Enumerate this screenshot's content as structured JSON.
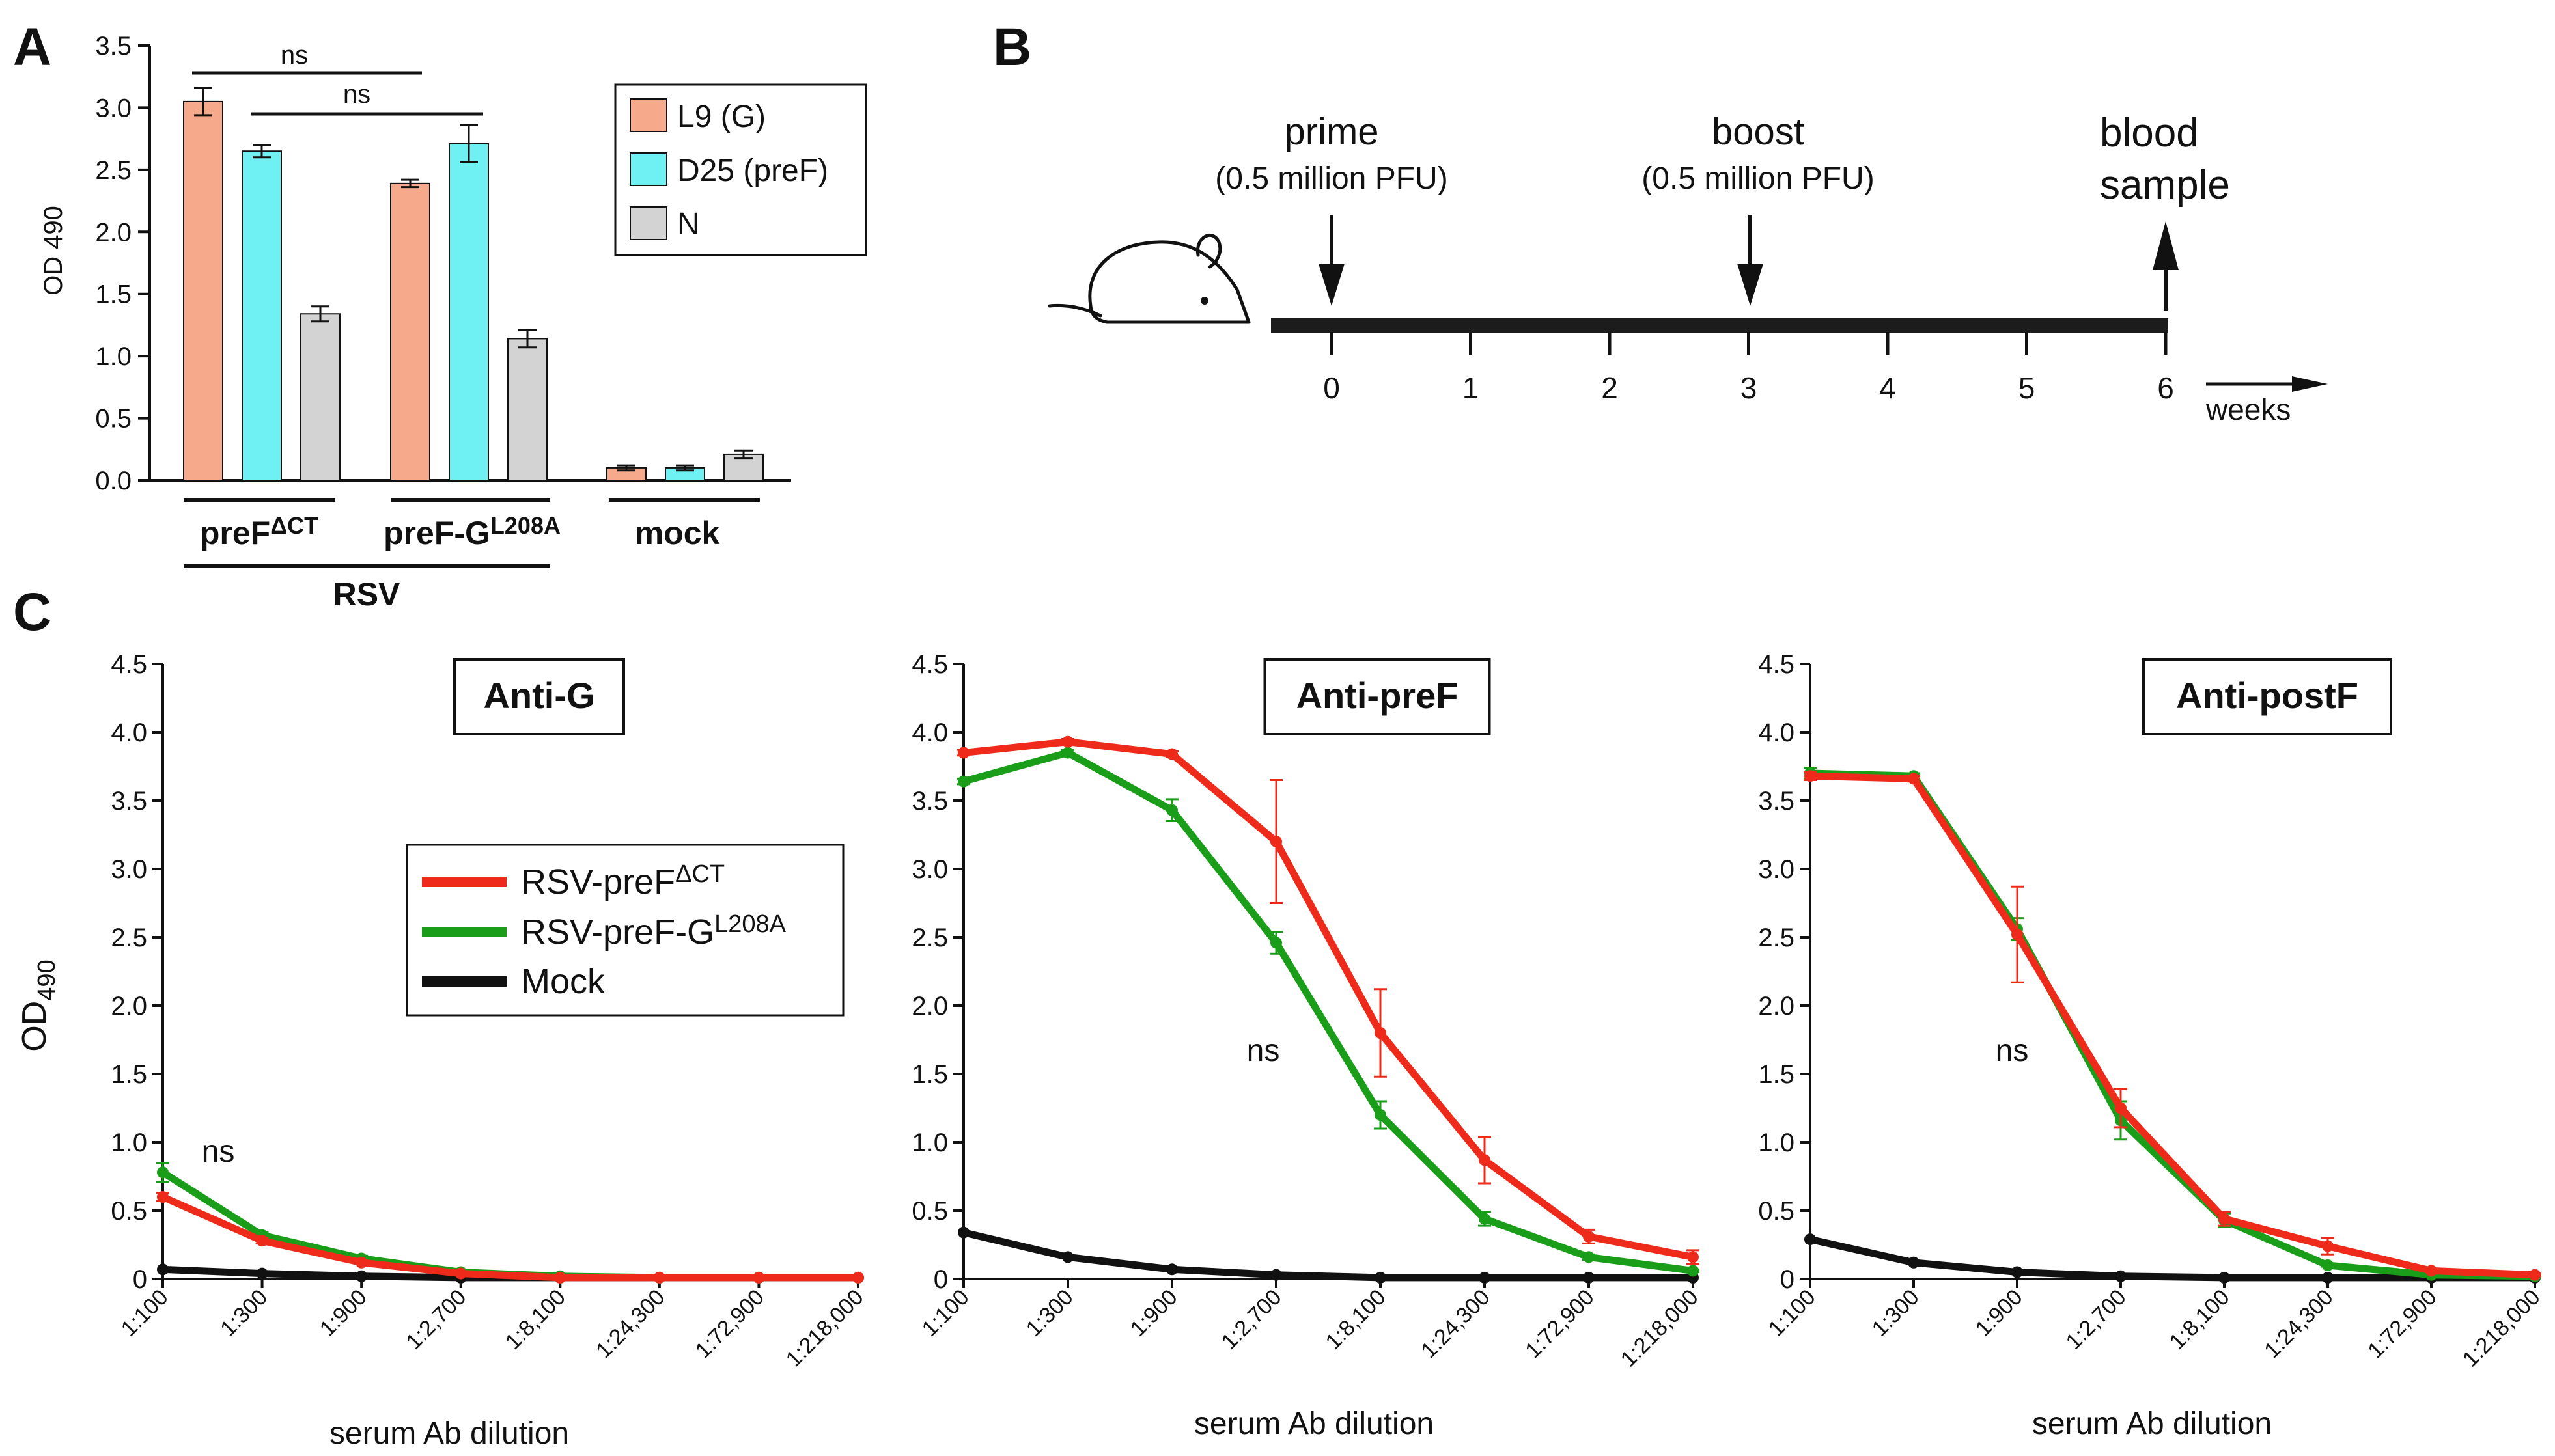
{
  "panels": {
    "a": {
      "letter": "A"
    },
    "b": {
      "letter": "B"
    },
    "c": {
      "letter": "C"
    }
  },
  "colors": {
    "l9": "#f7a98b",
    "d25": "#6ff0f2",
    "n": "#d3d3d3",
    "rsv_preF": "#ee2a1b",
    "rsv_preF_G": "#1a9e1a",
    "mock": "#111111"
  },
  "timeline": {
    "prime_label": "prime",
    "prime_dose": "(0.5 million PFU)",
    "boost_label": "boost",
    "boost_dose": "(0.5 million PFU)",
    "blood_label_1": "blood",
    "blood_label_2": "sample",
    "ticks": [
      "0",
      "1",
      "2",
      "3",
      "4",
      "5",
      "6"
    ],
    "unit": "weeks",
    "mouse_icon": "mouse-icon"
  },
  "chart_data": [
    {
      "id": "panel-a",
      "type": "bar",
      "ylabel": "OD 490",
      "ylim": [
        0,
        3.5
      ],
      "yticks": [
        "0.0",
        "0.5",
        "1.0",
        "1.5",
        "2.0",
        "2.5",
        "3.0",
        "3.5"
      ],
      "groups": [
        {
          "label": "preF",
          "superscript": "ΔCT"
        },
        {
          "label": "preF-G",
          "superscript": "L208A"
        },
        {
          "label": "mock",
          "superscript": ""
        }
      ],
      "supergroup_label": "RSV",
      "series": [
        {
          "name": "L9 (G)",
          "values": [
            3.05,
            2.39,
            0.1
          ],
          "errors": [
            0.11,
            0.03,
            0.02
          ]
        },
        {
          "name": "D25 (preF)",
          "values": [
            2.65,
            2.71,
            0.1
          ],
          "errors": [
            0.05,
            0.15,
            0.02
          ]
        },
        {
          "name": "N",
          "values": [
            1.34,
            1.14,
            0.21
          ],
          "errors": [
            0.06,
            0.07,
            0.03
          ]
        }
      ],
      "annotations": [
        "ns",
        "ns"
      ],
      "legend": "top-right"
    },
    {
      "id": "panel-c-antiG",
      "type": "line",
      "title": "Anti-G",
      "xlabel": "serum Ab dilution",
      "ylabel": "OD",
      "ylabel_sub": "490",
      "ylim": [
        0,
        4.5
      ],
      "yticks": [
        "0",
        "0.5",
        "1.0",
        "1.5",
        "2.0",
        "2.5",
        "3.0",
        "3.5",
        "4.0",
        "4.5"
      ],
      "categories": [
        "1:100",
        "1:300",
        "1:900",
        "1:2,700",
        "1:8,100",
        "1:24,300",
        "1:72,900",
        "1:218,000"
      ],
      "series": [
        {
          "name": "RSV-preF",
          "sup": "ΔCT",
          "values": [
            0.6,
            0.28,
            0.12,
            0.04,
            0.01,
            0.01,
            0.01,
            0.01
          ],
          "errors": [
            0.03,
            0.02,
            0.01,
            0.01,
            0,
            0,
            0,
            0
          ]
        },
        {
          "name": "RSV-preF-G",
          "sup": "L208A",
          "values": [
            0.78,
            0.32,
            0.15,
            0.05,
            0.02,
            0.01,
            0.01,
            0.01
          ],
          "errors": [
            0.07,
            0.02,
            0.02,
            0.01,
            0,
            0,
            0,
            0
          ]
        },
        {
          "name": "Mock",
          "sup": "",
          "values": [
            0.07,
            0.04,
            0.02,
            0.01,
            0.01,
            0.01,
            0.01,
            0.01
          ],
          "errors": [
            0,
            0,
            0,
            0,
            0,
            0,
            0,
            0
          ]
        }
      ],
      "annotation": "ns",
      "legend": "center"
    },
    {
      "id": "panel-c-antipreF",
      "type": "line",
      "title": "Anti-preF",
      "xlabel": "serum Ab dilution",
      "ylim": [
        0,
        4.5
      ],
      "yticks": [
        "0",
        "0.5",
        "1.0",
        "1.5",
        "2.0",
        "2.5",
        "3.0",
        "3.5",
        "4.0",
        "4.5"
      ],
      "categories": [
        "1:100",
        "1:300",
        "1:900",
        "1:2,700",
        "1:8,100",
        "1:24,300",
        "1:72,900",
        "1:218,000"
      ],
      "series": [
        {
          "name": "RSV-preF",
          "sup": "ΔCT",
          "values": [
            3.85,
            3.93,
            3.84,
            3.2,
            1.8,
            0.87,
            0.31,
            0.16
          ],
          "errors": [
            0.02,
            0.02,
            0.02,
            0.45,
            0.32,
            0.17,
            0.05,
            0.05
          ]
        },
        {
          "name": "RSV-preF-G",
          "sup": "L208A",
          "values": [
            3.64,
            3.85,
            3.43,
            2.46,
            1.2,
            0.44,
            0.16,
            0.06
          ],
          "errors": [
            0.02,
            0.02,
            0.08,
            0.08,
            0.1,
            0.05,
            0.02,
            0.01
          ]
        },
        {
          "name": "Mock",
          "sup": "",
          "values": [
            0.34,
            0.16,
            0.07,
            0.03,
            0.01,
            0.01,
            0.01,
            0.01
          ],
          "errors": [
            0,
            0,
            0,
            0,
            0,
            0,
            0,
            0
          ]
        }
      ],
      "annotation": "ns"
    },
    {
      "id": "panel-c-antipostF",
      "type": "line",
      "title": "Anti-postF",
      "xlabel": "serum Ab dilution",
      "ylim": [
        0,
        4.5
      ],
      "yticks": [
        "0",
        "0.5",
        "1.0",
        "1.5",
        "2.0",
        "2.5",
        "3.0",
        "3.5",
        "4.0",
        "4.5"
      ],
      "categories": [
        "1:100",
        "1:300",
        "1:900",
        "1:2,700",
        "1:8,100",
        "1:24,300",
        "1:72,900",
        "1:218,000"
      ],
      "series": [
        {
          "name": "RSV-preF",
          "sup": "ΔCT",
          "values": [
            3.68,
            3.66,
            2.52,
            1.25,
            0.44,
            0.24,
            0.06,
            0.03
          ],
          "errors": [
            0.03,
            0.02,
            0.35,
            0.14,
            0.05,
            0.06,
            0.01,
            0.01
          ]
        },
        {
          "name": "RSV-preF-G",
          "sup": "L208A",
          "values": [
            3.7,
            3.68,
            2.56,
            1.16,
            0.43,
            0.1,
            0.03,
            0.02
          ],
          "errors": [
            0.04,
            0.02,
            0.08,
            0.14,
            0.05,
            0.01,
            0.01,
            0.01
          ]
        },
        {
          "name": "Mock",
          "sup": "",
          "values": [
            0.29,
            0.12,
            0.05,
            0.02,
            0.01,
            0.01,
            0.01,
            0.01
          ],
          "errors": [
            0,
            0,
            0,
            0,
            0,
            0,
            0,
            0
          ]
        }
      ],
      "annotation": "ns"
    }
  ]
}
